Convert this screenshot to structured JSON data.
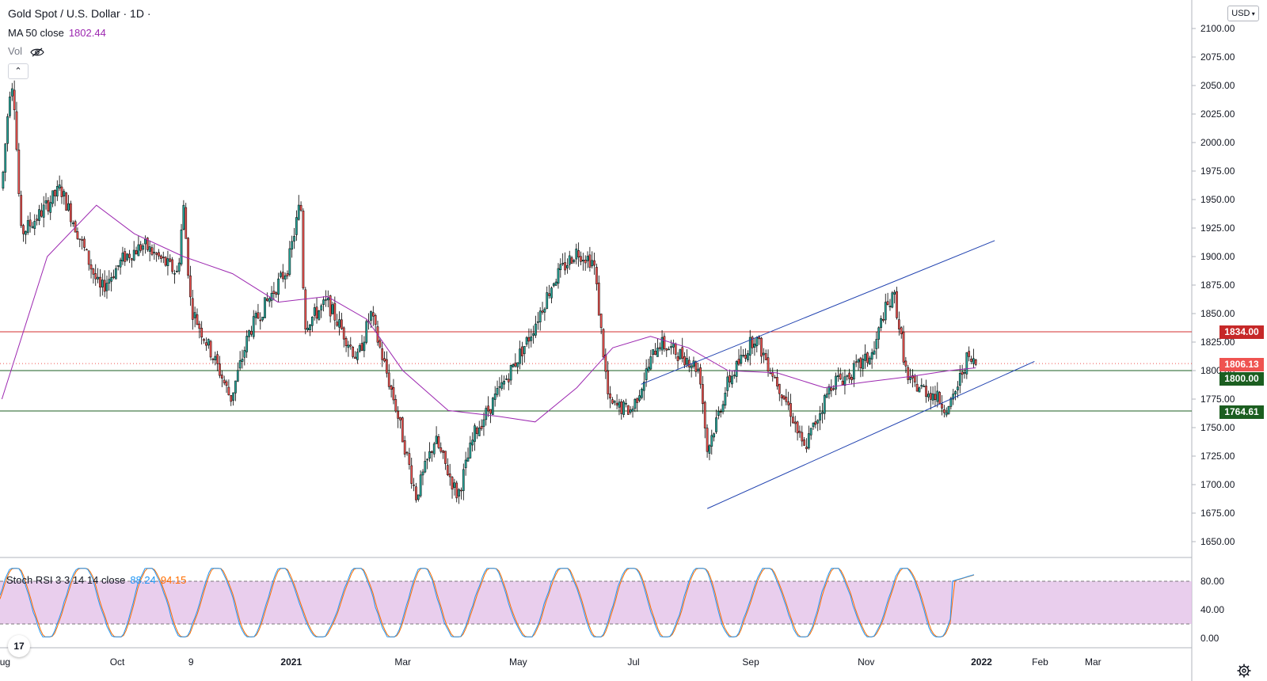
{
  "legend": {
    "title": "Gold Spot / U.S. Dollar · 1D ·",
    "ma_label": "MA 50 close",
    "ma_value": "1802.44",
    "vol_label": "Vol"
  },
  "currency": "USD",
  "colors": {
    "up": "#26a69a",
    "down": "#ef5350",
    "ma": "#9c27b0",
    "channel": "#1e40af",
    "resistance": "#d32f2f",
    "support": "#1b5e20",
    "stoch_k": "#2196f3",
    "stoch_d": "#ff6d00",
    "stoch_band": "#e1bee7"
  },
  "price_tags": [
    {
      "label": "1834.00",
      "price": 1834,
      "color": "#c62828"
    },
    {
      "label": "1806.13",
      "price": 1806.13,
      "color": "#ef5350"
    },
    {
      "label": "1800.00",
      "price": 1800,
      "color": "#1b5e20"
    },
    {
      "label": "1764.61",
      "price": 1764.61,
      "color": "#1b5e20"
    }
  ],
  "stoch_legend": {
    "label": "Stoch RSI 3 3 14 14 close",
    "k": "88.24",
    "d": "94.15"
  },
  "logo_text": "17",
  "chart_data": {
    "type": "candlestick",
    "title": "Gold Spot / U.S. Dollar · 1D",
    "ylim": [
      1635,
      2110
    ],
    "y_ticks": [
      "2100.00",
      "2075.00",
      "2050.00",
      "2025.00",
      "2000.00",
      "1975.00",
      "1950.00",
      "1925.00",
      "1900.00",
      "1875.00",
      "1850.00",
      "1825.00",
      "1800.00",
      "1775.00",
      "1750.00",
      "1725.00",
      "1700.00",
      "1675.00",
      "1650.00"
    ],
    "x_ticks": [
      "Aug",
      "Oct",
      "9",
      "2021",
      "Mar",
      "May",
      "Jul",
      "Sep",
      "Nov",
      "2022",
      "Feb",
      "Mar"
    ],
    "price_path": [
      [
        "2020-08-01",
        1960
      ],
      [
        "2020-08-05",
        2045
      ],
      [
        "2020-08-07",
        2055
      ],
      [
        "2020-08-11",
        1920
      ],
      [
        "2020-08-20",
        1935
      ],
      [
        "2020-09-01",
        1960
      ],
      [
        "2020-09-22",
        1870
      ],
      [
        "2020-10-05",
        1900
      ],
      [
        "2020-10-15",
        1910
      ],
      [
        "2020-11-02",
        1885
      ],
      [
        "2020-11-05",
        1945
      ],
      [
        "2020-11-09",
        1855
      ],
      [
        "2020-11-24",
        1800
      ],
      [
        "2020-11-30",
        1775
      ],
      [
        "2020-12-10",
        1835
      ],
      [
        "2020-12-30",
        1890
      ],
      [
        "2021-01-06",
        1950
      ],
      [
        "2021-01-08",
        1840
      ],
      [
        "2021-01-20",
        1860
      ],
      [
        "2021-02-05",
        1810
      ],
      [
        "2021-02-12",
        1850
      ],
      [
        "2021-02-25",
        1770
      ],
      [
        "2021-03-08",
        1690
      ],
      [
        "2021-03-18",
        1740
      ],
      [
        "2021-03-30",
        1690
      ],
      [
        "2021-04-08",
        1745
      ],
      [
        "2021-04-22",
        1785
      ],
      [
        "2021-05-07",
        1830
      ],
      [
        "2021-05-20",
        1880
      ],
      [
        "2021-06-01",
        1905
      ],
      [
        "2021-06-10",
        1895
      ],
      [
        "2021-06-18",
        1770
      ],
      [
        "2021-06-30",
        1765
      ],
      [
        "2021-07-14",
        1825
      ],
      [
        "2021-07-30",
        1810
      ],
      [
        "2021-08-05",
        1800
      ],
      [
        "2021-08-09",
        1730
      ],
      [
        "2021-08-20",
        1790
      ],
      [
        "2021-09-03",
        1830
      ],
      [
        "2021-09-15",
        1790
      ],
      [
        "2021-09-22",
        1765
      ],
      [
        "2021-09-29",
        1730
      ],
      [
        "2021-10-14",
        1790
      ],
      [
        "2021-10-22",
        1795
      ],
      [
        "2021-11-05",
        1815
      ],
      [
        "2021-11-10",
        1850
      ],
      [
        "2021-11-16",
        1865
      ],
      [
        "2021-11-23",
        1790
      ],
      [
        "2021-12-06",
        1780
      ],
      [
        "2021-12-15",
        1765
      ],
      [
        "2021-12-24",
        1810
      ],
      [
        "2021-12-29",
        1806
      ]
    ],
    "ma50": {
      "name": "MA 50 close",
      "points": [
        [
          "2020-08-01",
          1775
        ],
        [
          "2020-08-25",
          1900
        ],
        [
          "2020-09-20",
          1945
        ],
        [
          "2020-10-10",
          1920
        ],
        [
          "2020-11-05",
          1900
        ],
        [
          "2020-12-01",
          1885
        ],
        [
          "2020-12-25",
          1860
        ],
        [
          "2021-01-20",
          1865
        ],
        [
          "2021-02-10",
          1845
        ],
        [
          "2021-03-01",
          1800
        ],
        [
          "2021-03-25",
          1765
        ],
        [
          "2021-04-20",
          1760
        ],
        [
          "2021-05-10",
          1755
        ],
        [
          "2021-06-01",
          1785
        ],
        [
          "2021-06-20",
          1820
        ],
        [
          "2021-07-10",
          1830
        ],
        [
          "2021-07-30",
          1820
        ],
        [
          "2021-08-20",
          1800
        ],
        [
          "2021-09-15",
          1798
        ],
        [
          "2021-10-10",
          1785
        ],
        [
          "2021-11-01",
          1790
        ],
        [
          "2021-11-25",
          1795
        ],
        [
          "2021-12-15",
          1800
        ],
        [
          "2021-12-29",
          1802.44
        ]
      ]
    },
    "horizontal_lines": [
      {
        "price": 1834,
        "color": "#d32f2f"
      },
      {
        "price": 1800,
        "color": "#1b5e20"
      },
      {
        "price": 1764.61,
        "color": "#1b5e20"
      }
    ],
    "current_price": 1806.13,
    "channel": {
      "upper": [
        [
          "2021-07-05",
          1788
        ],
        [
          "2022-01-08",
          1914
        ]
      ],
      "lower": [
        [
          "2021-08-09",
          1679
        ],
        [
          "2022-01-29",
          1808
        ]
      ]
    },
    "stoch_rsi": {
      "ylim": [
        0,
        100
      ],
      "y_ticks": [
        "80.00",
        "40.00",
        "0.00"
      ],
      "band": [
        20,
        80
      ],
      "k_last": 88.24,
      "d_last": 94.15
    }
  }
}
